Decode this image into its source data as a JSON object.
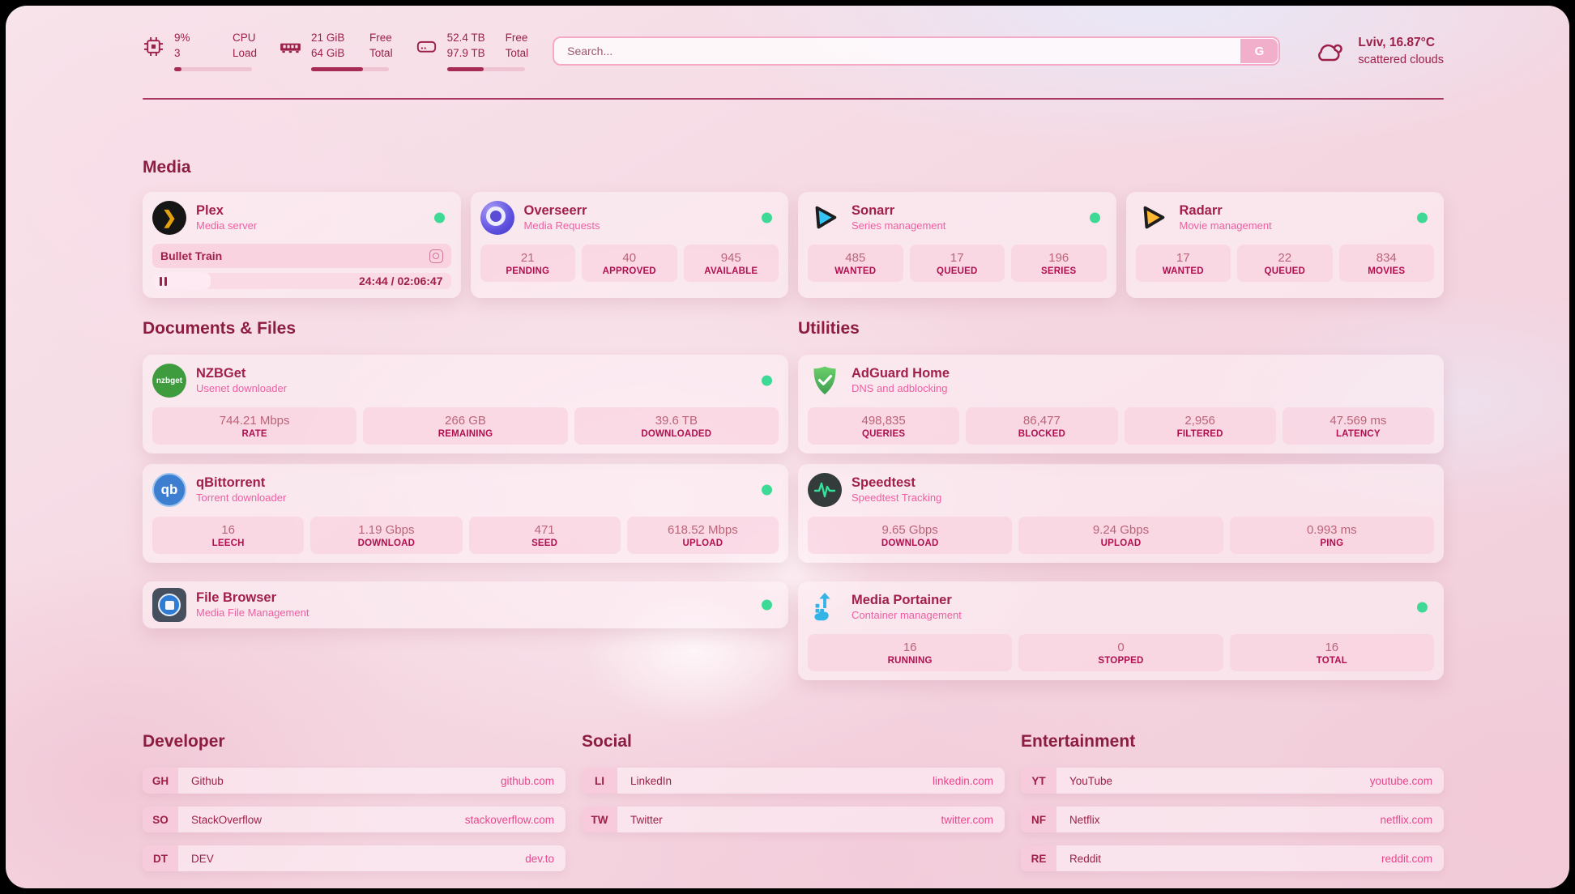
{
  "colors": {
    "accent": "#9c2048",
    "heading": "#8d1d40",
    "subtitle_pink": "#ee5fa2",
    "link_pink": "#e8478f",
    "status_online": "#3fd996",
    "progress_fill": "#a62c55"
  },
  "header": {
    "stats": [
      {
        "icon": "cpu-icon",
        "v1": "9%",
        "v2": "3",
        "l1": "CPU",
        "l2": "Load",
        "progress_percent": 9
      },
      {
        "icon": "ram-icon",
        "v1": "21 GiB",
        "v2": "64 GiB",
        "l1": "Free",
        "l2": "Total",
        "progress_percent": 67
      },
      {
        "icon": "disk-icon",
        "v1": "52.4 TB",
        "v2": "97.9 TB",
        "l1": "Free",
        "l2": "Total",
        "progress_percent": 47
      }
    ],
    "search": {
      "placeholder": "Search...",
      "button_label": "G"
    },
    "weather": {
      "summary": "Lviv, 16.87°C",
      "condition": "scattered clouds",
      "icon": "cloud-icon"
    }
  },
  "media": {
    "title": "Media",
    "plex": {
      "name": "Plex",
      "subtitle": "Media server",
      "now_playing": "Bullet Train",
      "time": "24:44 / 02:06:47",
      "progress_percent": 19.5
    },
    "overseerr": {
      "name": "Overseerr",
      "subtitle": "Media Requests",
      "stats": [
        {
          "value": "21",
          "label": "PENDING"
        },
        {
          "value": "40",
          "label": "APPROVED"
        },
        {
          "value": "945",
          "label": "AVAILABLE"
        }
      ]
    },
    "sonarr": {
      "name": "Sonarr",
      "subtitle": "Series management",
      "stats": [
        {
          "value": "485",
          "label": "WANTED"
        },
        {
          "value": "17",
          "label": "QUEUED"
        },
        {
          "value": "196",
          "label": "SERIES"
        }
      ]
    },
    "radarr": {
      "name": "Radarr",
      "subtitle": "Movie management",
      "stats": [
        {
          "value": "17",
          "label": "WANTED"
        },
        {
          "value": "22",
          "label": "QUEUED"
        },
        {
          "value": "834",
          "label": "MOVIES"
        }
      ]
    }
  },
  "documents": {
    "title": "Documents & Files",
    "nzbget": {
      "name": "NZBGet",
      "subtitle": "Usenet downloader",
      "stats": [
        {
          "value": "744.21 Mbps",
          "label": "RATE"
        },
        {
          "value": "266 GB",
          "label": "REMAINING"
        },
        {
          "value": "39.6 TB",
          "label": "DOWNLOADED"
        }
      ]
    },
    "qbittorrent": {
      "name": "qBittorrent",
      "subtitle": "Torrent downloader",
      "stats": [
        {
          "value": "16",
          "label": "LEECH"
        },
        {
          "value": "1.19 Gbps",
          "label": "DOWNLOAD"
        },
        {
          "value": "471",
          "label": "SEED"
        },
        {
          "value": "618.52 Mbps",
          "label": "UPLOAD"
        }
      ]
    },
    "filebrowser": {
      "name": "File Browser",
      "subtitle": "Media File Management"
    }
  },
  "utilities": {
    "title": "Utilities",
    "adguard": {
      "name": "AdGuard Home",
      "subtitle": "DNS and adblocking",
      "stats": [
        {
          "value": "498,835",
          "label": "QUERIES"
        },
        {
          "value": "86,477",
          "label": "BLOCKED"
        },
        {
          "value": "2,956",
          "label": "FILTERED"
        },
        {
          "value": "47.569 ms",
          "label": "LATENCY"
        }
      ]
    },
    "speedtest": {
      "name": "Speedtest",
      "subtitle": "Speedtest Tracking",
      "stats": [
        {
          "value": "9.65 Gbps",
          "label": "DOWNLOAD"
        },
        {
          "value": "9.24 Gbps",
          "label": "UPLOAD"
        },
        {
          "value": "0.993 ms",
          "label": "PING"
        }
      ]
    },
    "portainer": {
      "name": "Media Portainer",
      "subtitle": "Container management",
      "stats": [
        {
          "value": "16",
          "label": "RUNNING"
        },
        {
          "value": "0",
          "label": "STOPPED"
        },
        {
          "value": "16",
          "label": "TOTAL"
        }
      ]
    }
  },
  "links": {
    "developer": {
      "title": "Developer",
      "items": [
        {
          "abbr": "GH",
          "name": "Github",
          "url": "github.com"
        },
        {
          "abbr": "SO",
          "name": "StackOverflow",
          "url": "stackoverflow.com"
        },
        {
          "abbr": "DT",
          "name": "DEV",
          "url": "dev.to"
        }
      ]
    },
    "social": {
      "title": "Social",
      "items": [
        {
          "abbr": "LI",
          "name": "LinkedIn",
          "url": "linkedin.com"
        },
        {
          "abbr": "TW",
          "name": "Twitter",
          "url": "twitter.com"
        }
      ]
    },
    "entertainment": {
      "title": "Entertainment",
      "items": [
        {
          "abbr": "YT",
          "name": "YouTube",
          "url": "youtube.com"
        },
        {
          "abbr": "NF",
          "name": "Netflix",
          "url": "netflix.com"
        },
        {
          "abbr": "RE",
          "name": "Reddit",
          "url": "reddit.com"
        }
      ]
    }
  },
  "icon_labels": {
    "plex": "❯",
    "qbittorrent": "qb",
    "nzbget": "nzbget"
  }
}
